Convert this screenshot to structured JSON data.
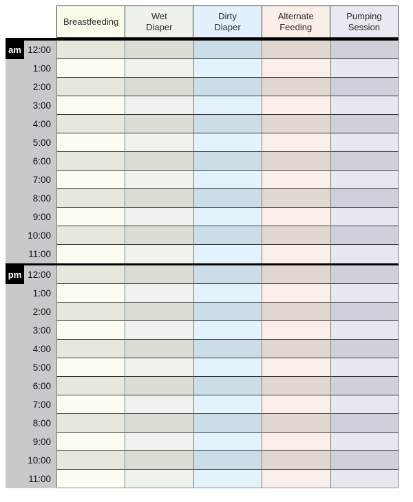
{
  "sheet": {
    "title": "daily baby care tracking grid",
    "columns": [
      {
        "label": "Breastfeeding",
        "lines": [
          "Breastfeeding"
        ],
        "header_bg": "#fbfbea",
        "row_light": "#fefdf1",
        "row_dark": "#e8e7dc"
      },
      {
        "label": "Wet Diaper",
        "lines": [
          "Wet",
          "Diaper"
        ],
        "header_bg": "#edf2eb",
        "row_light": "#eff3ed",
        "row_dark": "#d9dfd5"
      },
      {
        "label": "Dirty Diaper",
        "lines": [
          "Dirty",
          "Diaper"
        ],
        "header_bg": "#e1f0fa",
        "row_light": "#e4f2fb",
        "row_dark": "#cddde7"
      },
      {
        "label": "Alternate Feeding",
        "lines": [
          "Alternate",
          "Feeding"
        ],
        "header_bg": "#faeee9",
        "row_light": "#fbefeb",
        "row_dark": "#e2d8d2"
      },
      {
        "label": "Pumping Session",
        "lines": [
          "Pumping",
          "Session"
        ],
        "header_bg": "#e8e9f1",
        "row_light": "#e7e7f0",
        "row_dark": "#cfd0da"
      }
    ],
    "halves": [
      {
        "meridiem": "am",
        "times": [
          "12:00",
          "1:00",
          "2:00",
          "3:00",
          "4:00",
          "5:00",
          "6:00",
          "7:00",
          "8:00",
          "9:00",
          "10:00",
          "11:00"
        ]
      },
      {
        "meridiem": "pm",
        "times": [
          "12:00",
          "1:00",
          "2:00",
          "3:00",
          "4:00",
          "5:00",
          "6:00",
          "7:00",
          "8:00",
          "9:00",
          "10:00",
          "11:00"
        ]
      }
    ],
    "row_shading": {
      "even_rows": "dark",
      "odd_rows": "light"
    },
    "colors": {
      "page_bg": "#ffffff",
      "time_panel_bg": "#c9c9cb",
      "badge_bg": "#000000",
      "badge_text": "#ffffff",
      "divider": "#000000",
      "grid_vertical_border": "#7e7e84",
      "grid_horizontal_border": "#35353a",
      "header_border": "#3c3c3c",
      "table_bottom_border": "#8f8f96",
      "header_text": "#2a2a2a",
      "time_text": "#111111"
    }
  }
}
